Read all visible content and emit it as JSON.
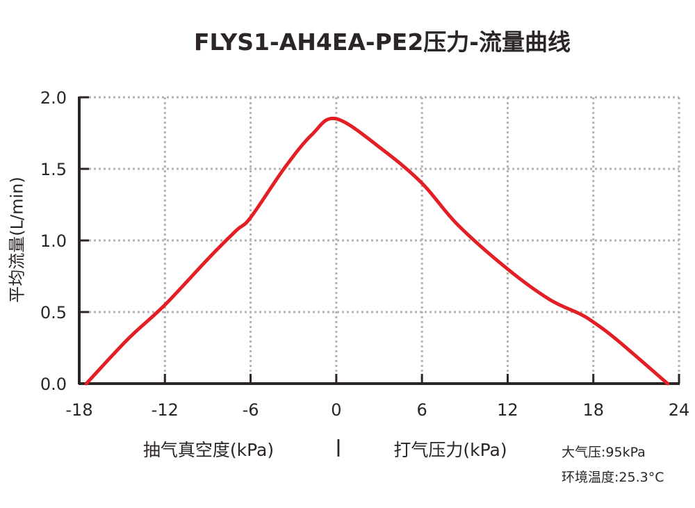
{
  "chart_data": {
    "type": "line",
    "title": "FLYS1-AH4EA-PE2压力-流量曲线",
    "ylabel": "平均流量(L/min)",
    "xlabel_left": "抽气真空度(kPa)",
    "xlabel_separator": "|",
    "xlabel_right": "打气压力(kPa)",
    "xlim": [
      -18,
      24
    ],
    "ylim": [
      0,
      2.0
    ],
    "x_ticks": [
      "-18",
      "-12",
      "-6",
      "0",
      "6",
      "12",
      "18",
      "24"
    ],
    "y_ticks": [
      "0.0",
      "0.5",
      "1.0",
      "1.5",
      "2.0"
    ],
    "grid": true,
    "grid_style": "dotted",
    "series": [
      {
        "color": "#e31e24",
        "x": [
          -17.5,
          -14.6,
          -12,
          -8.9,
          -7,
          -6,
          -3.6,
          -1.7,
          0,
          3.3,
          6,
          8.5,
          12,
          14.9,
          17,
          18,
          19.6,
          23.2
        ],
        "y": [
          0,
          0.31,
          0.55,
          0.88,
          1.07,
          1.16,
          1.51,
          1.74,
          1.85,
          1.63,
          1.4,
          1.11,
          0.8,
          0.59,
          0.49,
          0.43,
          0.31,
          0
        ]
      }
    ],
    "annotations": [
      "大气压:95kPa",
      "环境温度:25.3°C"
    ]
  },
  "colors": {
    "curve": "#e31e24",
    "axis": "#2b2525",
    "grid": "#b3b3b3"
  }
}
